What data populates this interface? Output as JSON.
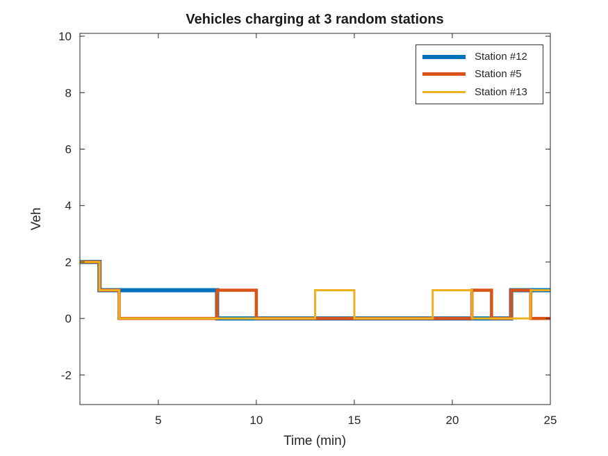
{
  "chart_data": {
    "type": "line",
    "subtype": "stairs-step",
    "title": "Vehicles charging at 3 random stations",
    "xlabel": "Time (min)",
    "ylabel": "Veh",
    "xlim": [
      1,
      25
    ],
    "ylim": [
      -3,
      10
    ],
    "xticks": [
      5,
      10,
      15,
      20,
      25
    ],
    "yticks": [
      -2,
      0,
      2,
      4,
      6,
      8,
      10
    ],
    "grid": false,
    "legend_position": "northeast",
    "series": [
      {
        "name": "Station #12",
        "color": "#0072BD",
        "line_width": 6,
        "step_points": [
          [
            1,
            2
          ],
          [
            2,
            1
          ],
          [
            8,
            0
          ],
          [
            23,
            1
          ]
        ],
        "end_x": 25
      },
      {
        "name": "Station #5",
        "color": "#D95319",
        "line_width": 4.5,
        "step_points": [
          [
            1,
            2
          ],
          [
            2,
            1
          ],
          [
            3,
            0
          ],
          [
            8,
            1
          ],
          [
            10,
            0
          ],
          [
            21,
            1
          ],
          [
            22,
            0
          ],
          [
            23,
            1
          ],
          [
            24,
            0
          ]
        ],
        "end_x": 25
      },
      {
        "name": "Station #13",
        "color": "#EDB120",
        "line_width": 3,
        "step_points": [
          [
            1,
            2
          ],
          [
            2,
            1
          ],
          [
            3,
            0
          ],
          [
            13,
            1
          ],
          [
            15,
            0
          ],
          [
            19,
            1
          ],
          [
            21,
            0
          ],
          [
            24,
            1
          ]
        ],
        "end_x": 25
      }
    ]
  }
}
